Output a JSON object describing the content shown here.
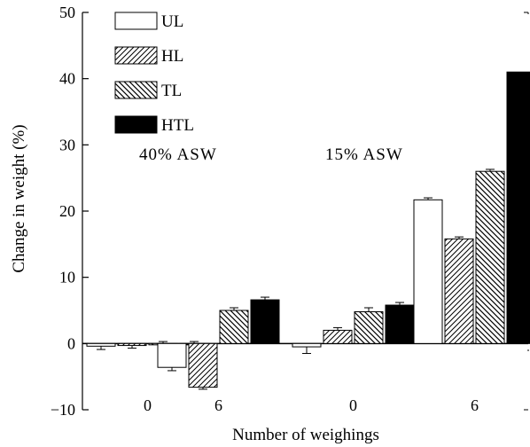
{
  "chart_data": {
    "type": "bar",
    "title": "",
    "xlabel": "Number of weighings",
    "ylabel": "Change in weight (%)",
    "ylim": [
      -10,
      50
    ],
    "yticks": [
      -10,
      0,
      10,
      20,
      30,
      40,
      50
    ],
    "grid": false,
    "legend_position": "top-left",
    "groups": [
      {
        "label": "0",
        "condition": "40% ASW"
      },
      {
        "label": "6",
        "condition": "40% ASW"
      },
      {
        "label": "0",
        "condition": "15% ASW"
      },
      {
        "label": "6",
        "condition": "15% ASW"
      }
    ],
    "annotations": [
      "40% ASW",
      "15% ASW"
    ],
    "series": [
      {
        "name": "UL",
        "pattern": "open",
        "values": [
          -0.4,
          -3.6,
          -0.5,
          21.7
        ],
        "errors": [
          0.5,
          0.5,
          1.0,
          0.3
        ]
      },
      {
        "name": "HL",
        "pattern": "hatch-forward",
        "values": [
          -0.3,
          -6.6,
          2.0,
          15.8
        ],
        "errors": [
          0.4,
          0.3,
          0.4,
          0.3
        ]
      },
      {
        "name": "TL",
        "pattern": "hatch-back",
        "values": [
          0.0,
          5.0,
          4.8,
          26.0
        ],
        "errors": [
          0.3,
          0.4,
          0.6,
          0.3
        ]
      },
      {
        "name": "HTL",
        "pattern": "solid",
        "values": [
          0.0,
          6.6,
          5.8,
          41.0
        ],
        "errors": [
          0.3,
          0.4,
          0.4,
          0.0
        ]
      }
    ]
  }
}
